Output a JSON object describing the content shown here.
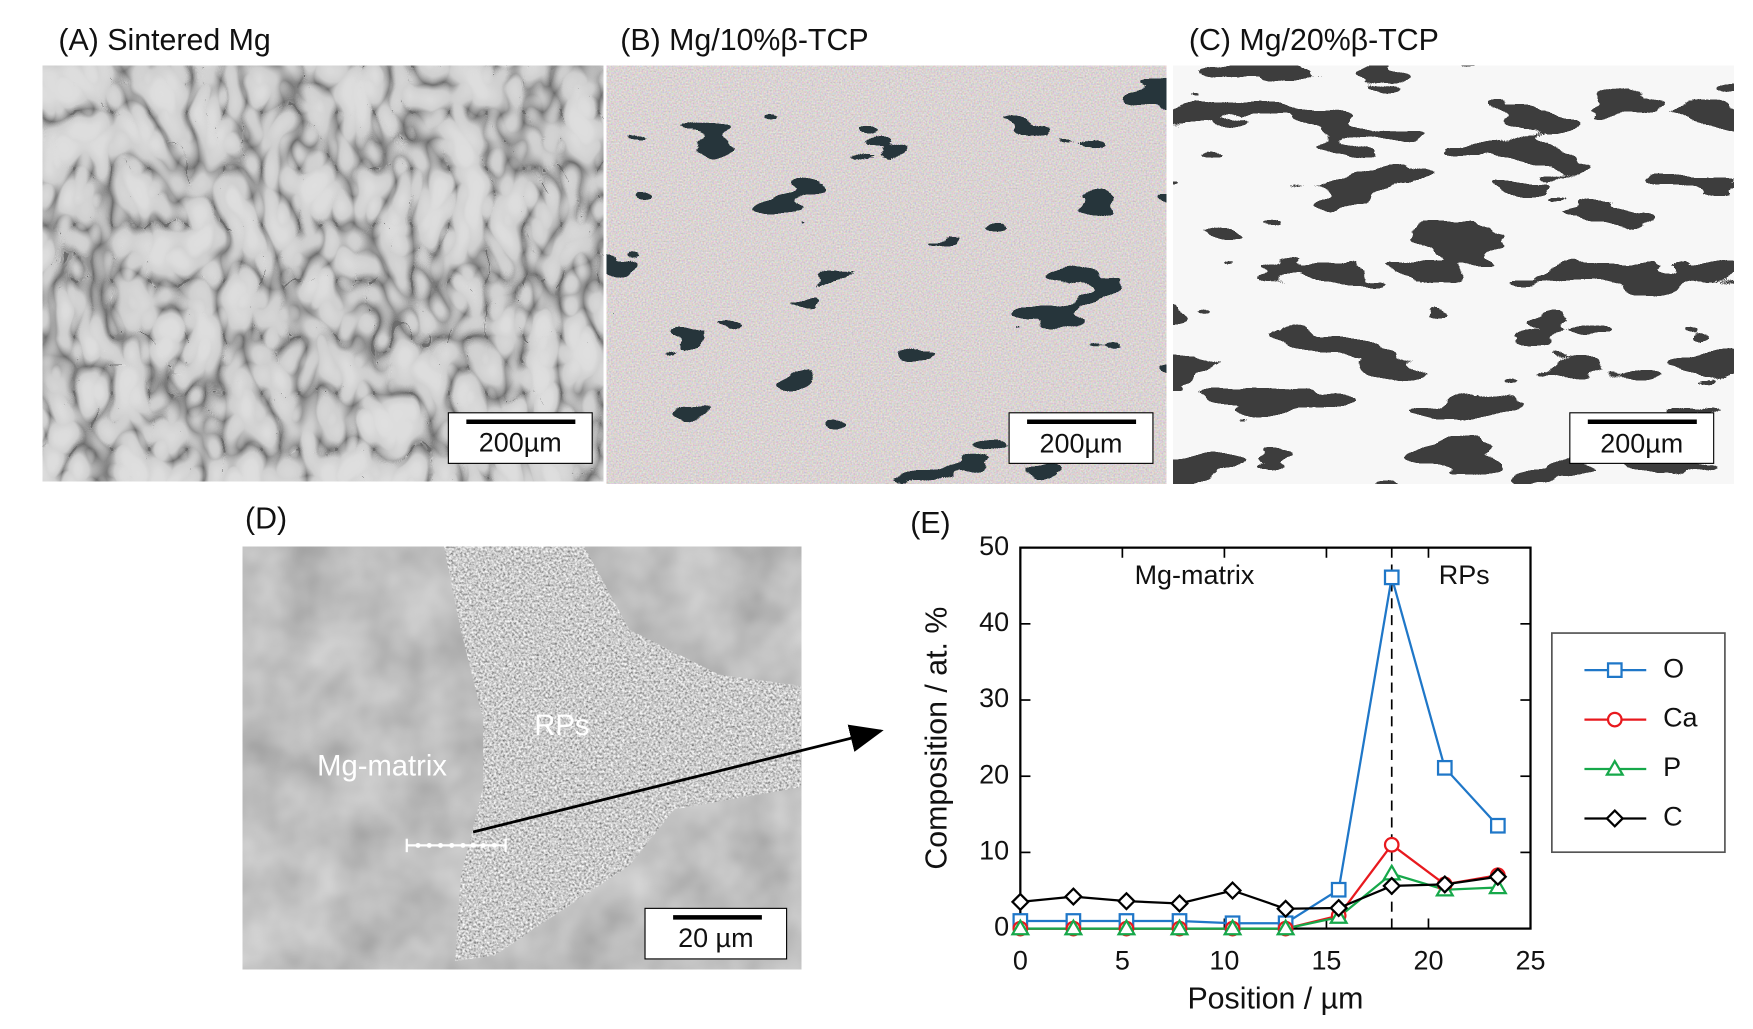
{
  "panels": {
    "a": {
      "title": "(A) Sintered Mg",
      "scale_bar": "200µm"
    },
    "b": {
      "title": "(B) Mg/10%β-TCP",
      "scale_bar": "200µm"
    },
    "c": {
      "title": "(C) Mg/20%β-TCP",
      "scale_bar": "200µm"
    },
    "d": {
      "title": "(D)",
      "matrix_label": "Mg-matrix",
      "particle_label": "RPs",
      "scale_bar": "20 µm"
    }
  },
  "chart_data": {
    "type": "line",
    "panel_label": "(E)",
    "x_label": "Position / µm",
    "y_label": "Composition / at. %",
    "annotations": [
      "Mg-matrix",
      "RPs"
    ],
    "vline": 18.2,
    "x": [
      0,
      2.6,
      5.2,
      7.8,
      10.4,
      13.0,
      15.6,
      18.2,
      20.8,
      23.4
    ],
    "series": [
      {
        "name": "O",
        "color": "#1f77c8",
        "marker": "square",
        "values": [
          1.0,
          1.0,
          1.0,
          1.0,
          0.7,
          0.7,
          5.1,
          46.1,
          21.1,
          13.5
        ]
      },
      {
        "name": "Ca",
        "color": "#e8191e",
        "marker": "circle",
        "values": [
          0,
          0,
          0,
          0,
          0,
          0,
          1.7,
          11.0,
          5.8,
          7.0
        ]
      },
      {
        "name": "P",
        "color": "#16a84a",
        "marker": "triangle",
        "values": [
          0,
          0,
          0,
          0,
          0,
          0,
          1.5,
          7.2,
          5.1,
          5.4
        ]
      },
      {
        "name": "C",
        "color": "#000000",
        "marker": "diamond",
        "values": [
          3.5,
          4.2,
          3.6,
          3.3,
          5.0,
          2.6,
          2.7,
          5.6,
          5.8,
          6.8
        ]
      }
    ],
    "xlim": [
      0,
      25
    ],
    "ylim": [
      0,
      50
    ],
    "xticks": [
      0,
      5,
      10,
      15,
      20,
      25
    ],
    "yticks": [
      0,
      10,
      20,
      30,
      40,
      50
    ]
  }
}
